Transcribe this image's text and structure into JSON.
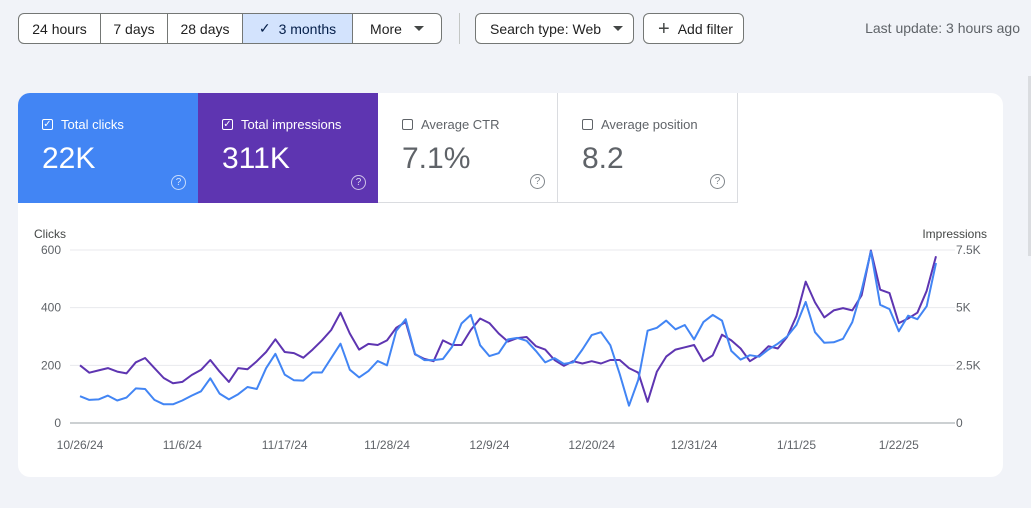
{
  "toolbar": {
    "ranges": [
      {
        "label": "24 hours",
        "selected": false
      },
      {
        "label": "7 days",
        "selected": false
      },
      {
        "label": "28 days",
        "selected": false
      },
      {
        "label": "3 months",
        "selected": true
      },
      {
        "label": "More",
        "selected": false
      }
    ],
    "search_type_label": "Search type: Web",
    "add_filter_label": "Add filter",
    "last_update": "Last update: 3 hours ago"
  },
  "metrics": {
    "clicks": {
      "label": "Total clicks",
      "value": "22K",
      "checked": true,
      "color": "#4285f4"
    },
    "impressions": {
      "label": "Total impressions",
      "value": "311K",
      "checked": true,
      "color": "#5e35b1"
    },
    "ctr": {
      "label": "Average CTR",
      "value": "7.1%",
      "checked": false
    },
    "position": {
      "label": "Average position",
      "value": "8.2",
      "checked": false
    }
  },
  "chart_data": {
    "type": "line",
    "left_axis_label": "Clicks",
    "right_axis_label": "Impressions",
    "left_ticks": [
      "0",
      "200",
      "400",
      "600"
    ],
    "right_ticks": [
      "0",
      "2.5K",
      "5K",
      "7.5K"
    ],
    "left_ylim": [
      0,
      600
    ],
    "right_ylim": [
      0,
      7500
    ],
    "x_tick_labels": [
      "10/26/24",
      "11/6/24",
      "11/17/24",
      "11/28/24",
      "12/9/24",
      "12/20/24",
      "12/31/24",
      "1/11/25",
      "1/22/25"
    ],
    "grid": true,
    "series": [
      {
        "name": "Clicks",
        "axis": "left",
        "color": "#4285f4",
        "values": [
          93,
          80,
          82,
          95,
          78,
          88,
          120,
          118,
          80,
          65,
          65,
          78,
          95,
          110,
          155,
          102,
          82,
          100,
          125,
          118,
          190,
          240,
          168,
          148,
          147,
          175,
          175,
          225,
          275,
          185,
          158,
          180,
          215,
          200,
          320,
          360,
          240,
          218,
          218,
          222,
          265,
          345,
          375,
          270,
          232,
          242,
          290,
          295,
          285,
          250,
          210,
          225,
          205,
          210,
          255,
          305,
          315,
          270,
          170,
          60,
          150,
          320,
          330,
          355,
          325,
          340,
          290,
          350,
          375,
          355,
          250,
          220,
          235,
          230,
          255,
          275,
          300,
          340,
          420,
          315,
          278,
          280,
          292,
          350,
          460,
          595,
          410,
          395,
          318,
          372,
          360,
          405,
          555
        ]
      },
      {
        "name": "Impressions",
        "axis": "right",
        "color": "#5e35b1",
        "values": [
          2500,
          2180,
          2280,
          2380,
          2230,
          2150,
          2630,
          2820,
          2380,
          1950,
          1720,
          1780,
          2080,
          2300,
          2730,
          2230,
          1780,
          2380,
          2330,
          2680,
          3080,
          3630,
          3080,
          3030,
          2830,
          3180,
          3580,
          4030,
          4780,
          3880,
          3180,
          3430,
          3380,
          3580,
          4130,
          4380,
          2980,
          2780,
          2680,
          3580,
          3380,
          3380,
          4030,
          4530,
          4330,
          3880,
          3530,
          3680,
          3730,
          3330,
          3180,
          2730,
          2480,
          2680,
          2580,
          2680,
          2580,
          2730,
          2730,
          2380,
          2180,
          920,
          2230,
          2880,
          3180,
          3280,
          3380,
          2680,
          2930,
          3830,
          3580,
          3230,
          2680,
          2930,
          3330,
          3230,
          3730,
          4630,
          6130,
          5230,
          4580,
          4880,
          4980,
          4880,
          5530,
          7480,
          5780,
          5630,
          4330,
          4530,
          4780,
          5730,
          7230
        ]
      }
    ]
  }
}
